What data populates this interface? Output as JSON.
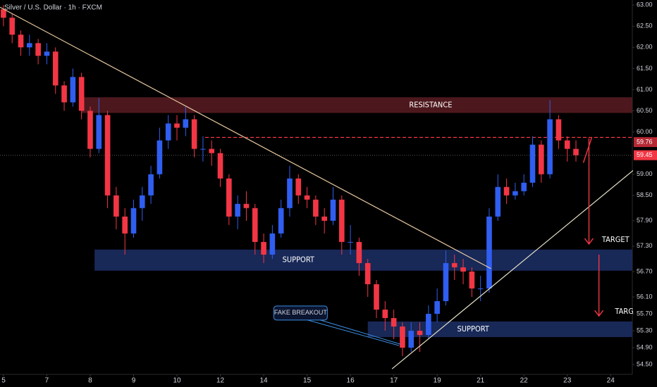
{
  "chart_data": {
    "type": "candlestick",
    "title": "Silver / U.S. Dollar · 1h · FXCM",
    "up_color": "#2f5ef0",
    "down_color": "#f23645",
    "x": [
      0,
      0.2,
      0.4,
      0.6,
      0.8,
      1,
      1.2,
      1.4,
      1.6,
      1.8,
      2,
      2.2,
      2.4,
      2.6,
      2.8,
      3,
      3.2,
      3.4,
      3.6,
      3.8,
      4,
      4.2,
      4.4,
      4.6,
      4.8,
      5,
      5.2,
      5.4,
      5.6,
      5.8,
      6,
      6.2,
      6.4,
      6.6,
      6.8,
      7,
      7.2,
      7.4,
      7.6,
      7.8,
      8,
      8.2,
      8.4,
      8.6,
      8.8,
      9,
      9.2,
      9.4,
      9.6,
      9.8,
      10,
      10.2,
      10.4,
      10.6,
      10.8,
      11,
      11.2,
      11.4,
      11.6,
      11.8,
      12,
      12.2,
      12.4,
      12.6,
      12.8,
      13,
      13.2
    ],
    "open": [
      62.9,
      62.7,
      62.3,
      62.0,
      62.1,
      61.8,
      61.9,
      61.1,
      60.7,
      61.3,
      60.5,
      59.6,
      60.4,
      58.5,
      58.0,
      57.6,
      58.2,
      58.5,
      59.0,
      59.8,
      60.2,
      60.1,
      60.3,
      59.6,
      59.6,
      59.5,
      58.9,
      58.0,
      58.3,
      58.2,
      57.4,
      57.1,
      57.6,
      58.2,
      58.9,
      58.5,
      58.4,
      58.0,
      57.9,
      58.4,
      57.4,
      57.4,
      56.9,
      56.4,
      55.8,
      55.6,
      55.4,
      54.9,
      55.3,
      55.2,
      55.7,
      56.0,
      56.9,
      56.8,
      56.7,
      56.3,
      56.3,
      58.0,
      58.7,
      58.5,
      58.6,
      58.8,
      59.7,
      59.0,
      60.3,
      59.8,
      59.6
    ],
    "high": [
      63.0,
      62.8,
      62.4,
      62.3,
      62.2,
      62.1,
      62.0,
      61.2,
      61.5,
      61.4,
      60.6,
      60.8,
      60.5,
      58.7,
      58.2,
      58.4,
      58.7,
      59.2,
      60.1,
      60.4,
      60.4,
      60.6,
      60.4,
      59.9,
      59.8,
      59.6,
      59.0,
      58.5,
      58.6,
      58.3,
      57.6,
      57.8,
      58.4,
      59.2,
      59.0,
      58.7,
      58.5,
      58.2,
      58.7,
      58.5,
      57.8,
      57.5,
      57.0,
      56.5,
      56.0,
      55.8,
      55.5,
      55.5,
      55.5,
      55.9,
      56.3,
      57.2,
      57.1,
      57.0,
      56.8,
      56.6,
      58.2,
      59.0,
      58.9,
      58.8,
      59.0,
      59.9,
      59.8,
      60.75,
      60.4,
      59.9,
      59.8
    ],
    "low": [
      62.5,
      62.1,
      61.8,
      61.8,
      61.6,
      61.6,
      60.9,
      60.5,
      60.6,
      60.3,
      59.4,
      59.5,
      58.2,
      57.7,
      57.1,
      57.5,
      57.9,
      58.3,
      58.9,
      59.6,
      59.8,
      59.9,
      59.4,
      59.3,
      59.2,
      58.7,
      57.8,
      57.7,
      57.9,
      57.1,
      56.9,
      57.0,
      57.5,
      58.0,
      58.3,
      58.2,
      57.8,
      57.6,
      57.8,
      57.1,
      57.1,
      56.6,
      56.1,
      55.6,
      55.3,
      55.1,
      54.7,
      54.8,
      54.8,
      55.1,
      55.5,
      55.9,
      56.5,
      56.4,
      56.1,
      56.0,
      56.2,
      57.9,
      58.3,
      58.4,
      58.5,
      58.7,
      58.8,
      58.9,
      59.6,
      59.3,
      59.3
    ],
    "close": [
      62.7,
      62.3,
      62.0,
      62.1,
      61.8,
      61.9,
      61.1,
      60.7,
      61.3,
      60.5,
      59.6,
      60.4,
      58.5,
      58.0,
      57.6,
      58.2,
      58.5,
      59.0,
      59.8,
      60.2,
      60.1,
      60.3,
      59.6,
      59.6,
      59.5,
      58.9,
      58.0,
      58.3,
      58.2,
      57.4,
      57.1,
      57.6,
      58.2,
      58.9,
      58.5,
      58.4,
      58.0,
      57.9,
      58.4,
      57.4,
      57.4,
      56.9,
      56.4,
      55.8,
      55.6,
      55.4,
      54.9,
      55.3,
      55.2,
      55.7,
      56.0,
      56.9,
      56.8,
      56.7,
      56.3,
      56.3,
      58.0,
      58.7,
      58.5,
      58.6,
      58.8,
      59.7,
      59.0,
      60.3,
      59.8,
      59.6,
      59.45
    ],
    "xlim": [
      -0.08,
      14.5
    ],
    "xticks": [
      {
        "value": 0,
        "label": "5"
      },
      {
        "value": 1,
        "label": "7"
      },
      {
        "value": 2,
        "label": "8"
      },
      {
        "value": 3,
        "label": "9"
      },
      {
        "value": 4,
        "label": "10"
      },
      {
        "value": 5,
        "label": "12"
      },
      {
        "value": 6,
        "label": "14"
      },
      {
        "value": 7,
        "label": "15"
      },
      {
        "value": 8,
        "label": "16"
      },
      {
        "value": 9,
        "label": "17"
      },
      {
        "value": 10,
        "label": "19"
      },
      {
        "value": 11,
        "label": "21"
      },
      {
        "value": 12,
        "label": "22"
      },
      {
        "value": 13,
        "label": "23"
      },
      {
        "value": 14,
        "label": "24"
      }
    ],
    "ylim": [
      54.27,
      63.12
    ],
    "yticks": [
      {
        "value": 63,
        "label": "63.00"
      },
      {
        "value": 62.5,
        "label": "62.50"
      },
      {
        "value": 62,
        "label": "62.00"
      },
      {
        "value": 61.5,
        "label": "61.50"
      },
      {
        "value": 61,
        "label": "61.00"
      },
      {
        "value": 60.5,
        "label": "60.50"
      },
      {
        "value": 60,
        "label": "60.00"
      },
      {
        "value": 59,
        "label": "59.00"
      },
      {
        "value": 58.5,
        "label": "58.50"
      },
      {
        "value": 57.9,
        "label": "57.90"
      },
      {
        "value": 57.3,
        "label": "57.30"
      },
      {
        "value": 56.7,
        "label": "56.70"
      },
      {
        "value": 56.1,
        "label": "56.10"
      },
      {
        "value": 55.7,
        "label": "55.70"
      },
      {
        "value": 55.3,
        "label": "55.30"
      },
      {
        "value": 54.9,
        "label": "54.90"
      },
      {
        "value": 54.5,
        "label": "54.50"
      }
    ],
    "price_labels": [
      {
        "value": 59.76,
        "label": "59.76"
      },
      {
        "value": 59.45,
        "label": "59.45"
      }
    ],
    "zones": [
      {
        "label": "RESISTANCE",
        "y": [
          60.45,
          60.82
        ],
        "x0": 1.8,
        "label_x": 9.85,
        "color": "#5a1c22"
      },
      {
        "label": "SUPPORT",
        "y": [
          56.72,
          57.22
        ],
        "x0": 2.1,
        "label_x": 6.8,
        "color": "#1c2f66"
      },
      {
        "label": "SUPPORT",
        "y": [
          55.15,
          55.52
        ],
        "x0": 8.4,
        "label_x": 10.83,
        "color": "#1c2f66"
      }
    ],
    "level": {
      "value": 59.87,
      "x0": 4.65,
      "color": "#f23645"
    },
    "trendlines": [
      {
        "x0": -0.08,
        "y0": 62.95,
        "x1": 11.24,
        "y1": 56.77,
        "color": "#e8c9a0"
      },
      {
        "x0": 8.96,
        "y0": 54.4,
        "x1": 14.53,
        "y1": 59.1,
        "color": "#e8e2c8"
      }
    ],
    "arrows": [
      {
        "x": 13.5,
        "from": 59.85,
        "to": 57.35,
        "label": "TARGET",
        "label_x": 13.8,
        "label_y": 57.45
      },
      {
        "x": 13.73,
        "from": 57.1,
        "to": 55.65,
        "label": "TARGET",
        "label_x": 14.1,
        "label_y": 55.75
      }
    ],
    "callout": {
      "label": "FAKE BREAKOUT",
      "x": 6.85,
      "y": 55.72,
      "target_x": 9.12,
      "target_y": 54.95
    }
  }
}
